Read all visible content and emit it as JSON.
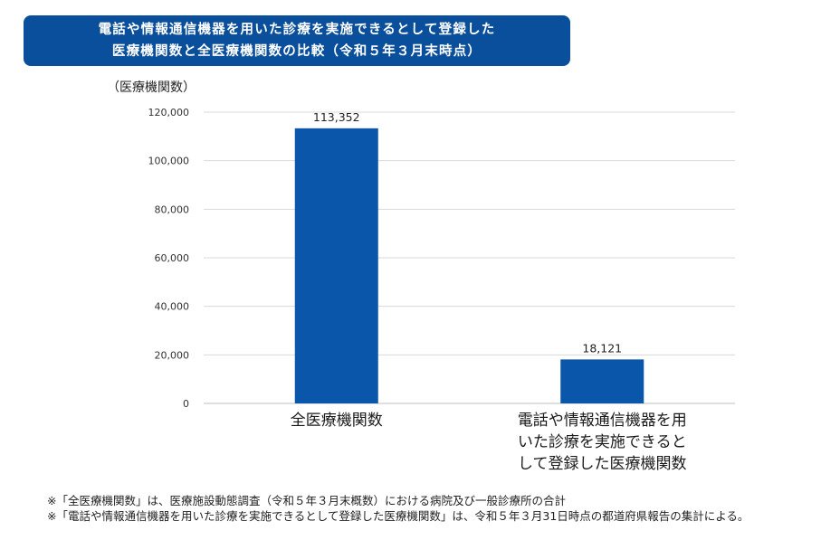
{
  "title": {
    "line1": "電話や情報通信機器を用いた診療を実施できるとして登録した",
    "line2": "医療機関数と全医療機関数の比較（令和５年３月末時点）"
  },
  "colors": {
    "title_bg": "#0a4f9c",
    "bar": "#0a56aa",
    "grid": "#d9d9d9"
  },
  "chart_data": {
    "type": "bar",
    "ylabel": "（医療機関数）",
    "ylim": [
      0,
      120000
    ],
    "yticks": [
      0,
      20000,
      40000,
      60000,
      80000,
      100000,
      120000
    ],
    "ytick_labels": [
      "0",
      "20,000",
      "40,000",
      "60,000",
      "80,000",
      "100,000",
      "120,000"
    ],
    "categories": [
      [
        "全医療機関数"
      ],
      [
        "電話や情報通信機器を用",
        "いた診療を実施できると",
        "して登録した医療機関数"
      ]
    ],
    "values": [
      113352,
      18121
    ],
    "value_labels": [
      "113,352",
      "18,121"
    ],
    "grid": true,
    "legend": "none"
  },
  "notes": [
    {
      "mark": "※",
      "text": "「全医療機関数」は、医療施設動態調査（令和５年３月末概数）における病院及び一般診療所の合計"
    },
    {
      "mark": "※",
      "text": "「電話や情報通信機器を用いた診療を実施できるとして登録した医療機関数」は、令和５年３月31日時点の都道府県報告の集計による。"
    }
  ]
}
